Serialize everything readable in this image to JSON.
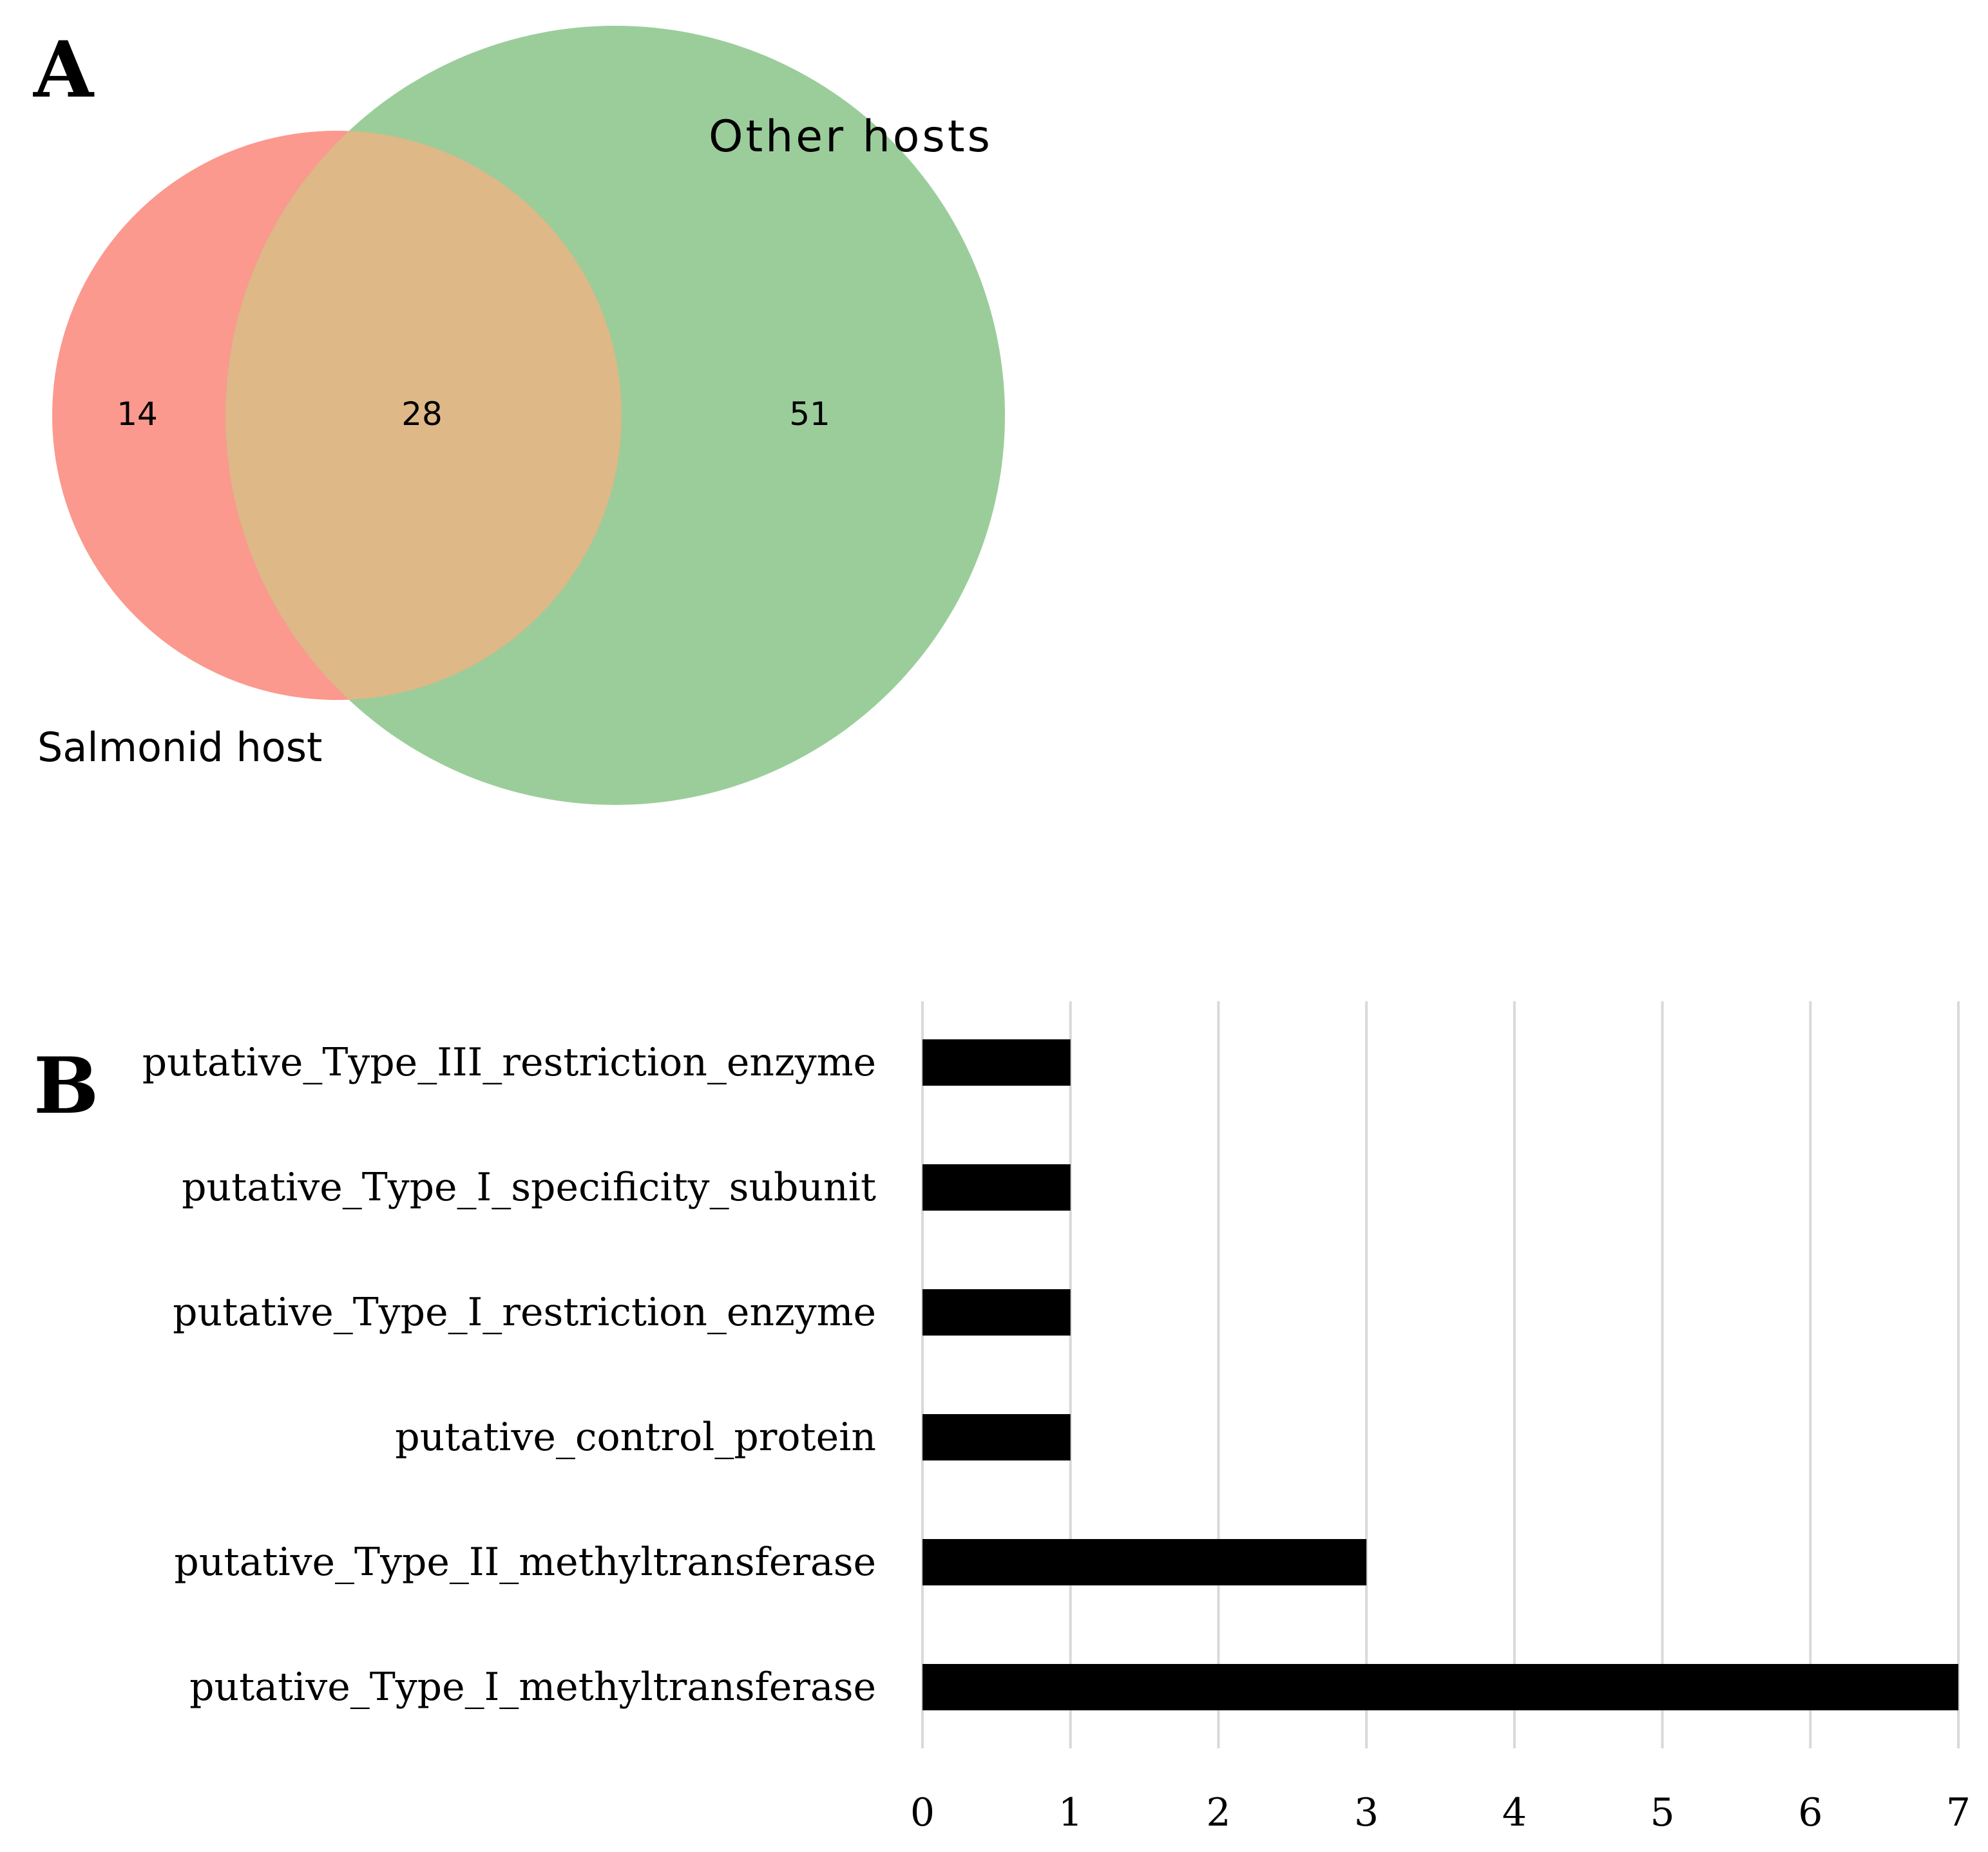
{
  "chart_data": [
    {
      "type": "venn",
      "panel_label": "A",
      "sets": [
        {
          "name": "Salmonid host",
          "only": 14,
          "color": "#fa8072"
        },
        {
          "name": "Other hosts",
          "only": 51,
          "color": "#7fbf7f"
        }
      ],
      "overlap": 28,
      "overlap_color": "#deb887"
    },
    {
      "type": "bar",
      "orientation": "horizontal",
      "panel_label": "B",
      "categories": [
        "putative_Type_III_restriction_enzyme",
        "putative_Type_I_specificity_subunit",
        "putative_Type_I_restriction_enzyme",
        "putative_control_protein",
        "putative_Type_II_methyltransferase",
        "putative_Type_I_methyltransferase"
      ],
      "values": [
        1,
        1,
        1,
        1,
        3,
        7
      ],
      "xlim": [
        0,
        7
      ],
      "xticks": [
        0,
        1,
        2,
        3,
        4,
        5,
        6,
        7
      ],
      "grid": true,
      "bar_color": "#000000",
      "title": "",
      "xlabel": "",
      "ylabel": ""
    }
  ]
}
